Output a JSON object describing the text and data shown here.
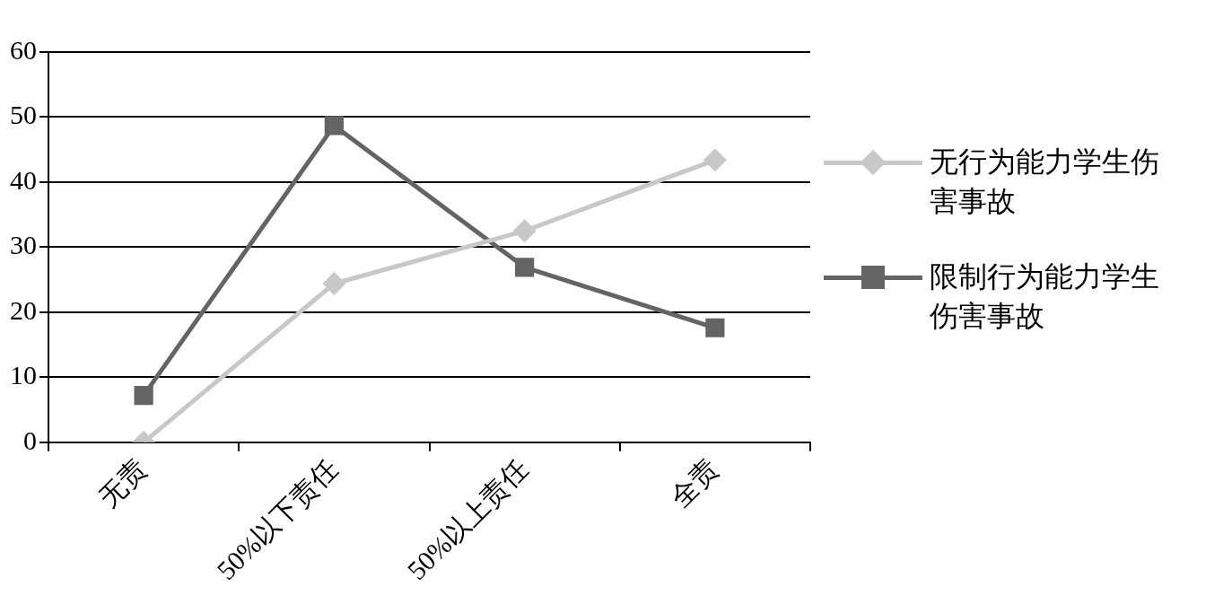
{
  "chart_data": {
    "type": "line",
    "categories": [
      "无责",
      "50%以下责任",
      "50%以上责任",
      "全责"
    ],
    "series": [
      {
        "name": "无行为能力学生伤害事故",
        "color": "#c8c8c8",
        "marker": "diamond",
        "values": [
          0,
          24.4,
          32.5,
          43.4
        ]
      },
      {
        "name": "限制行为能力学生伤害事故",
        "color": "#646464",
        "marker": "square",
        "values": [
          7.2,
          48.7,
          26.9,
          17.6
        ]
      }
    ],
    "ylim": [
      0,
      60
    ],
    "yticks": [
      0,
      10,
      20,
      30,
      40,
      50,
      60
    ],
    "grid": "y",
    "legend": "right",
    "line_style": "solid"
  }
}
